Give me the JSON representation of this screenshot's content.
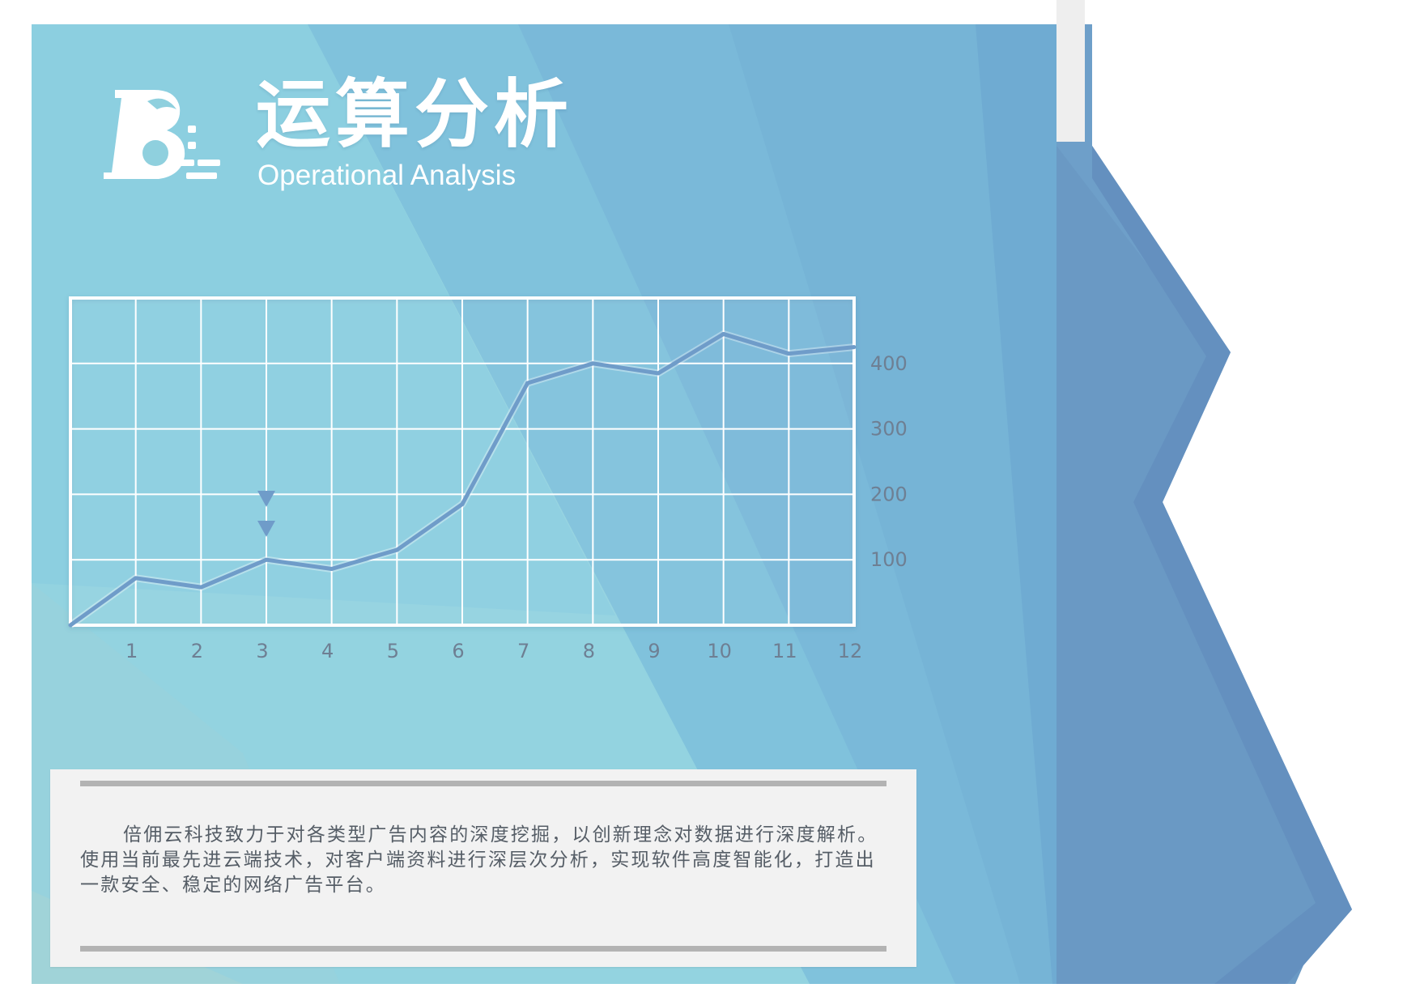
{
  "header": {
    "title_cn": "运算分析",
    "title_en": "Operational Analysis",
    "logo_icon": "bull-logo-icon"
  },
  "chart_data": {
    "type": "line",
    "x": [
      0,
      1,
      2,
      3,
      4,
      5,
      6,
      7,
      8,
      9,
      10,
      11,
      12
    ],
    "x_tick_labels": [
      "1",
      "2",
      "3",
      "4",
      "5",
      "6",
      "7",
      "8",
      "9",
      "10",
      "11",
      "12"
    ],
    "series": [
      {
        "values": [
          0,
          72,
          58,
          100,
          86,
          115,
          185,
          370,
          400,
          385,
          445,
          415,
          425
        ]
      }
    ],
    "y_tick_labels": [
      "400",
      "300",
      "200",
      "100"
    ],
    "y_ticks": [
      400,
      300,
      200,
      100
    ],
    "xlim": [
      0,
      12
    ],
    "ylim": [
      0,
      500
    ],
    "grid": true,
    "annotation": {
      "type": "double-down-arrow-marker",
      "x": 3
    },
    "colors": {
      "line": "#6f9cc9",
      "grid": "#ffffff",
      "tick_label": "#6e7f93"
    }
  },
  "description": {
    "text": "倍佣云科技致力于对各类型广告内容的深度挖掘，以创新理念对数据进行深度解析。使用当前最先进云端技术，对客户端资料进行深层次分析，实现软件高度智能化，打造出一款安全、稳定的网络广告平台。"
  }
}
